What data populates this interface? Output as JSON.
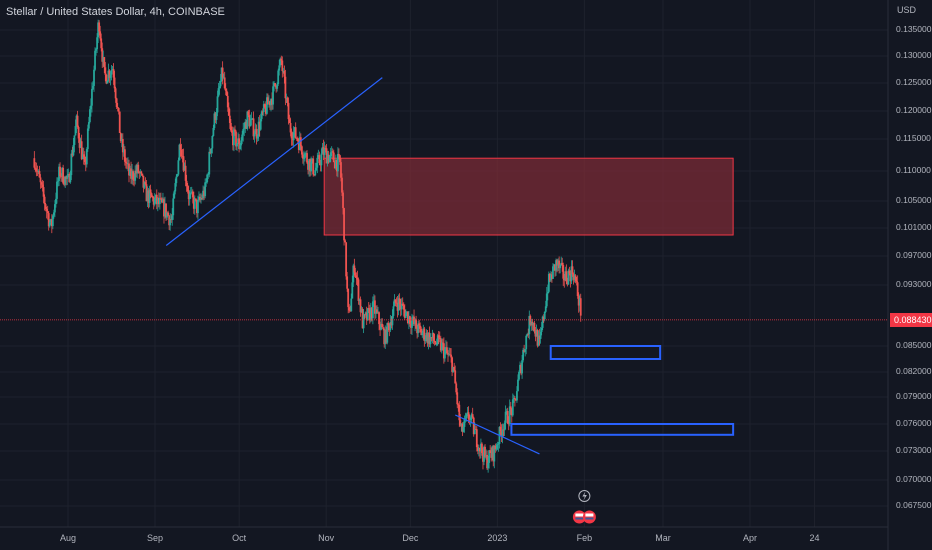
{
  "header": {
    "title": "Stellar / United States Dollar, 4h, COINBASE"
  },
  "axis": {
    "y_unit": "USD"
  },
  "current_price": {
    "label": "0.088430",
    "value": 0.08843,
    "color": "#f23645"
  },
  "colors": {
    "background": "#131722",
    "up": "#26a69a",
    "down": "#ef5350",
    "trendline": "#2962ff",
    "zone_fill": "#7a2b35",
    "zone_border": "#f23645",
    "box_border": "#2962ff"
  },
  "chart_data": {
    "type": "candlestick",
    "symbol": "Stellar / United States Dollar",
    "interval": "4h",
    "exchange": "COINBASE",
    "y_ticks": [
      "0.135000",
      "0.130000",
      "0.125000",
      "0.120000",
      "0.115000",
      "0.110000",
      "0.105000",
      "0.101000",
      "0.097000",
      "0.093000",
      "0.085000",
      "0.082000",
      "0.079000",
      "0.076000",
      "0.073000",
      "0.070000",
      "0.067500"
    ],
    "x_ticks": [
      "Aug",
      "Sep",
      "Oct",
      "Nov",
      "Dec",
      "2023",
      "Feb",
      "Mar",
      "Apr",
      "24"
    ],
    "price_path": [
      [
        "Jul 20",
        0.112
      ],
      [
        "Jul 23",
        0.106
      ],
      [
        "Jul 26",
        0.101
      ],
      [
        "Jul 29",
        0.11
      ],
      [
        "Aug 1",
        0.108
      ],
      [
        "Aug 4",
        0.118
      ],
      [
        "Aug 7",
        0.11
      ],
      [
        "Aug 10",
        0.126
      ],
      [
        "Aug 12",
        0.137
      ],
      [
        "Aug 14",
        0.126
      ],
      [
        "Aug 17",
        0.128
      ],
      [
        "Aug 20",
        0.114
      ],
      [
        "Aug 23",
        0.109
      ],
      [
        "Aug 26",
        0.11
      ],
      [
        "Aug 29",
        0.106
      ],
      [
        "Sep 1",
        0.105
      ],
      [
        "Sep 4",
        0.104
      ],
      [
        "Sep 7",
        0.102
      ],
      [
        "Sep 10",
        0.115
      ],
      [
        "Sep 13",
        0.106
      ],
      [
        "Sep 16",
        0.104
      ],
      [
        "Sep 19",
        0.107
      ],
      [
        "Sep 22",
        0.118
      ],
      [
        "Sep 25",
        0.127
      ],
      [
        "Sep 28",
        0.116
      ],
      [
        "Oct 1",
        0.114
      ],
      [
        "Oct 4",
        0.119
      ],
      [
        "Oct 7",
        0.116
      ],
      [
        "Oct 10",
        0.12
      ],
      [
        "Oct 13",
        0.123
      ],
      [
        "Oct 16",
        0.129
      ],
      [
        "Oct 19",
        0.117
      ],
      [
        "Oct 22",
        0.115
      ],
      [
        "Oct 25",
        0.112
      ],
      [
        "Oct 28",
        0.11
      ],
      [
        "Oct 31",
        0.113
      ],
      [
        "Nov 3",
        0.112
      ],
      [
        "Nov 6",
        0.111
      ],
      [
        "Nov 9",
        0.088
      ],
      [
        "Nov 11",
        0.096
      ],
      [
        "Nov 14",
        0.088
      ],
      [
        "Nov 18",
        0.09
      ],
      [
        "Nov 22",
        0.086
      ],
      [
        "Nov 26",
        0.091
      ],
      [
        "Nov 30",
        0.089
      ],
      [
        "Dec 4",
        0.087
      ],
      [
        "Dec 8",
        0.086
      ],
      [
        "Dec 12",
        0.085
      ],
      [
        "Dec 16",
        0.083
      ],
      [
        "Dec 19",
        0.075
      ],
      [
        "Dec 22",
        0.077
      ],
      [
        "Dec 25",
        0.074
      ],
      [
        "Dec 28",
        0.072
      ],
      [
        "Dec 31",
        0.073
      ],
      [
        "Jan 3",
        0.076
      ],
      [
        "Jan 7",
        0.078
      ],
      [
        "Jan 10",
        0.084
      ],
      [
        "Jan 13",
        0.089
      ],
      [
        "Jan 16",
        0.085
      ],
      [
        "Jan 19",
        0.093
      ],
      [
        "Jan 22",
        0.096
      ],
      [
        "Jan 25",
        0.094
      ],
      [
        "Jan 28",
        0.095
      ],
      [
        "Jan 31",
        0.089
      ]
    ],
    "annotations": {
      "supply_zone": {
        "x_start": "Nov 1",
        "x_end": "Mar 26",
        "y_low": 0.1,
        "y_high": 0.112
      },
      "box_upper": {
        "x_start": "Jan 20",
        "x_end": "Feb 28",
        "y_low": 0.0835,
        "y_high": 0.085
      },
      "box_lower": {
        "x_start": "Jan 6",
        "x_end": "Mar 26",
        "y_low": 0.0748,
        "y_high": 0.076
      },
      "trendline_1": [
        [
          "Sep 5",
          0.0985
        ],
        [
          "Nov 21",
          0.126
        ]
      ],
      "trendline_2": [
        [
          "Dec 17",
          0.077
        ],
        [
          "Jan 16",
          0.0727
        ]
      ]
    },
    "event_markers": [
      "lightning",
      "flag",
      "flag"
    ]
  }
}
